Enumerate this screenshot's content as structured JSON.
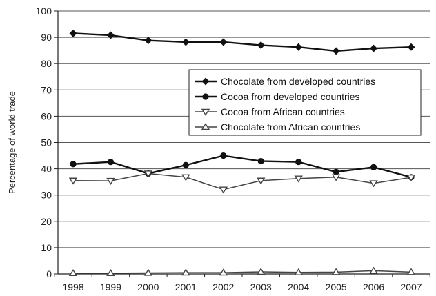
{
  "chart_data": {
    "type": "line",
    "title": "",
    "xlabel": "",
    "ylabel": "Percentage of world trade",
    "ylim": [
      0,
      100
    ],
    "yticks": [
      0,
      10,
      20,
      30,
      40,
      50,
      60,
      70,
      80,
      90,
      100
    ],
    "x": [
      "1998",
      "1999",
      "2000",
      "2001",
      "2002",
      "2003",
      "2004",
      "2005",
      "2006",
      "2007"
    ],
    "grid": "horizontal",
    "legend_position": "right, upper-middle",
    "series": [
      {
        "name": "Chocolate from developed countries",
        "marker": "diamond",
        "color": "#111111",
        "values": [
          91.5,
          90.8,
          88.8,
          88.2,
          88.2,
          87.0,
          86.3,
          84.8,
          85.8,
          86.3
        ]
      },
      {
        "name": "Cocoa from developed countries",
        "marker": "circle",
        "color": "#111111",
        "values": [
          41.8,
          42.6,
          38.2,
          41.4,
          45.0,
          42.9,
          42.6,
          38.8,
          40.6,
          36.8
        ]
      },
      {
        "name": "Cocoa from African countries",
        "marker": "triangle-down",
        "color": "#444444",
        "values": [
          35.5,
          35.4,
          38.2,
          36.8,
          32.1,
          35.5,
          36.3,
          36.8,
          34.5,
          36.7
        ]
      },
      {
        "name": "Chocolate from African countries",
        "marker": "triangle-up",
        "color": "#444444",
        "values": [
          0.3,
          0.3,
          0.4,
          0.5,
          0.5,
          0.8,
          0.6,
          0.7,
          1.2,
          0.7
        ]
      }
    ]
  }
}
